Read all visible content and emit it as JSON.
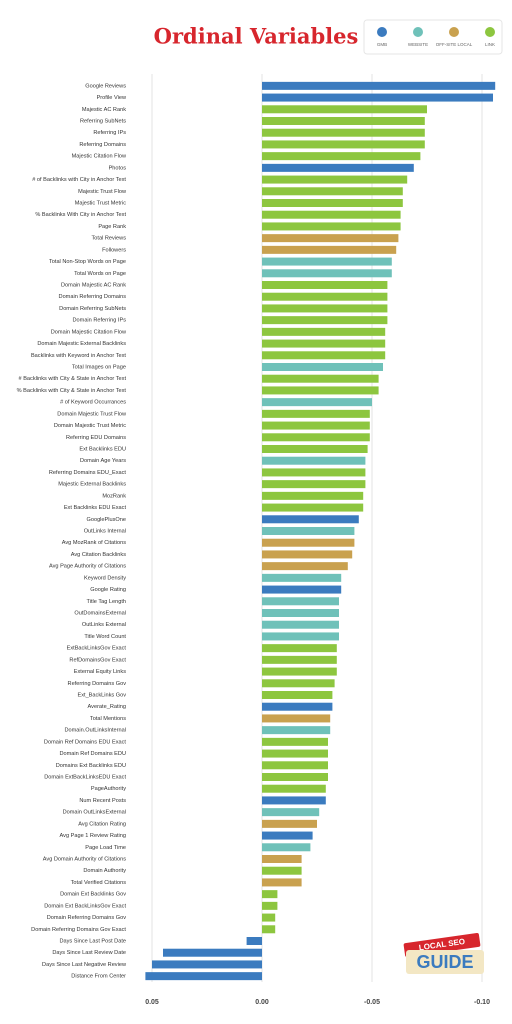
{
  "chart_data": {
    "type": "bar",
    "orientation": "horizontal",
    "title": "Ordinal Variables",
    "categories": [
      "Google Reviews",
      "Profile View",
      "Majestic AC Rank",
      "Referring SubNets",
      "Referring IPs",
      "Referring Domains",
      "Majestic Citation Flow",
      "Photos",
      "# of Backlinks with City in Anchor Text",
      "Majestic Trust Flow",
      "Majestic Trust Metric",
      "% Backlinks With City in Anchor Text",
      "Page Rank",
      "Total Reviews",
      "Followers",
      "Total Non-Stop Words on Page",
      "Total Words on Page",
      "Domain Majestic AC Rank",
      "Domain Referring Domains",
      "Domain Referring SubNets",
      "Domain Referring IPs",
      "Domain Majestic Citation Flow",
      "Domain Majestic External Backlinks",
      "Backlinks with Keyword in Anchor Text",
      "Total Images on Page",
      "# Backlinks with City & State in Anchor Text",
      "% Backlinks with City & State in Anchor Text",
      "# of Keyword Occurrances",
      "Domain Majestic Trust Flow",
      "Domain Majestic Trust Metric",
      "Referring EDU Domains",
      "Ext Backlinks EDU",
      "Domain Age Years",
      "Referring Domains EDU_Exact",
      "Majestic External Backlinks",
      "MozRank",
      "Ext Backlinks EDU Exact",
      "GooglePlusOne",
      "OutLinks Internal",
      "Avg MozRank of Citations",
      "Avg Citation Backlinks",
      "Avg Page Authority of Citations",
      "Keyword Density",
      "Google Rating",
      "Title Tag Length",
      "OutDomainsExternal",
      "OutLinks External",
      "Title Word Count",
      "ExtBackLinksGov Exact",
      "RefDomainsGov Exact",
      "External Equity Links",
      "Referring Domains Gov",
      "Ext_BackLinks Gov",
      "Averate_Rating",
      "Total Mentions",
      "Domain.OutLinksInternal",
      "Domain Ref Domains EDU Exact",
      "Domain Ref Domains EDU",
      "Domains Ext Backlinks EDU",
      "Domain ExtBackLinksEDU Exact",
      "PageAuthority",
      "Num Recent Posts",
      "Domain OutLinksExternal",
      "Avg Citation Rating",
      "Avg Page 1 Review Rating",
      "Page Load Time",
      "Avg Domain Authority of Citations",
      "Domain Authority",
      "Total Verified Citations",
      "Domain Ext Backlinks Gov",
      "Domain Ext BackLinksGov Exact",
      "Domain Referring Domains Gov",
      "Domain Referring Domains Gov Exact",
      "Days Since Last Post Date",
      "Days Since Last Review Date",
      "Days Since Last Negative Review",
      "Distance From Center"
    ],
    "series": [
      {
        "name": "GMB",
        "color": "#3b7bbf",
        "values": [
          -0.106,
          -0.105,
          null,
          null,
          null,
          null,
          null,
          -0.069,
          null,
          null,
          null,
          null,
          null,
          null,
          null,
          null,
          null,
          null,
          null,
          null,
          null,
          null,
          null,
          null,
          null,
          null,
          null,
          null,
          null,
          null,
          null,
          null,
          null,
          null,
          null,
          null,
          null,
          -0.044,
          null,
          null,
          null,
          null,
          null,
          -0.036,
          null,
          null,
          null,
          null,
          null,
          null,
          null,
          null,
          null,
          -0.032,
          null,
          null,
          null,
          null,
          null,
          null,
          null,
          -0.029,
          null,
          null,
          -0.023,
          null,
          null,
          null,
          null,
          null,
          null,
          null,
          null,
          0.007,
          0.045,
          0.05,
          0.053
        ]
      },
      {
        "name": "WEBSITE",
        "color": "#6fc1b9",
        "values": [
          null,
          null,
          null,
          null,
          null,
          null,
          null,
          null,
          null,
          null,
          null,
          null,
          null,
          null,
          null,
          -0.059,
          -0.059,
          null,
          null,
          null,
          null,
          null,
          null,
          null,
          -0.055,
          null,
          null,
          -0.05,
          null,
          null,
          null,
          null,
          -0.047,
          null,
          null,
          null,
          null,
          null,
          -0.042,
          null,
          null,
          null,
          -0.036,
          null,
          -0.035,
          -0.035,
          -0.035,
          -0.035,
          null,
          null,
          null,
          null,
          null,
          null,
          null,
          -0.031,
          null,
          null,
          null,
          null,
          null,
          null,
          -0.026,
          null,
          null,
          -0.022,
          null,
          null,
          null,
          null,
          null,
          null,
          null,
          null,
          null,
          null,
          null
        ]
      },
      {
        "name": "OFF-SITE LOCAL",
        "color": "#c9a14f",
        "values": [
          null,
          null,
          null,
          null,
          null,
          null,
          null,
          null,
          null,
          null,
          null,
          null,
          null,
          -0.062,
          -0.061,
          null,
          null,
          null,
          null,
          null,
          null,
          null,
          null,
          null,
          null,
          null,
          null,
          null,
          null,
          null,
          null,
          null,
          null,
          null,
          null,
          null,
          null,
          null,
          null,
          -0.042,
          -0.041,
          -0.039,
          null,
          null,
          null,
          null,
          null,
          null,
          null,
          null,
          null,
          null,
          null,
          null,
          -0.031,
          null,
          null,
          null,
          null,
          null,
          null,
          null,
          null,
          -0.025,
          null,
          null,
          -0.018,
          null,
          -0.018,
          null,
          null,
          null,
          null,
          null,
          null,
          null,
          null
        ]
      },
      {
        "name": "LINK",
        "color": "#8dc63f",
        "values": [
          null,
          null,
          -0.075,
          -0.074,
          -0.074,
          -0.074,
          -0.072,
          null,
          -0.066,
          -0.064,
          -0.064,
          -0.063,
          -0.063,
          null,
          null,
          null,
          null,
          -0.057,
          -0.057,
          -0.057,
          -0.057,
          -0.056,
          -0.056,
          -0.056,
          null,
          -0.053,
          -0.053,
          null,
          -0.049,
          -0.049,
          -0.049,
          -0.048,
          null,
          -0.047,
          -0.047,
          -0.046,
          -0.046,
          null,
          null,
          null,
          null,
          null,
          null,
          null,
          null,
          null,
          null,
          null,
          -0.034,
          -0.034,
          -0.034,
          -0.033,
          -0.032,
          null,
          null,
          null,
          -0.03,
          -0.03,
          -0.03,
          -0.03,
          -0.029,
          null,
          null,
          null,
          null,
          null,
          null,
          -0.018,
          null,
          -0.007,
          -0.007,
          -0.006,
          -0.006,
          null,
          null,
          null,
          null
        ]
      }
    ],
    "xlim": [
      0.055,
      -0.11
    ],
    "xticks": [
      0.05,
      {
        "value": 0,
        "label": "0.00"
      },
      -0.05,
      {
        "value": -0.1,
        "label": "-0.10"
      }
    ],
    "grid": true,
    "legend": "top-right",
    "logo": {
      "top": "LOCAL SEO",
      "bottom": "GUIDE"
    }
  }
}
